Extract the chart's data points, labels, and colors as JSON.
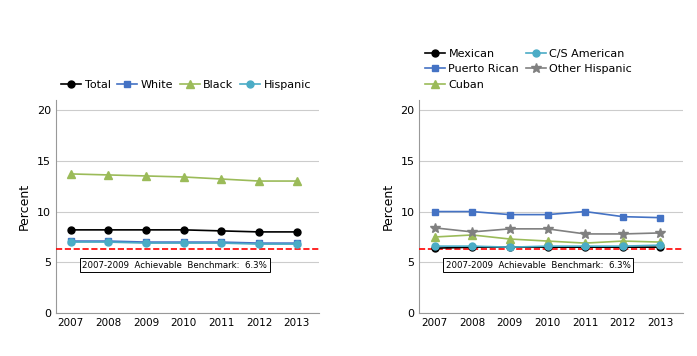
{
  "years": [
    2007,
    2008,
    2009,
    2010,
    2011,
    2012,
    2013
  ],
  "left_chart": {
    "Total": [
      8.2,
      8.2,
      8.2,
      8.2,
      8.1,
      8.0,
      8.0
    ],
    "White": [
      7.1,
      7.1,
      7.0,
      7.0,
      7.0,
      6.9,
      6.9
    ],
    "Black": [
      13.7,
      13.6,
      13.5,
      13.4,
      13.2,
      13.0,
      13.0
    ],
    "Hispanic": [
      7.0,
      7.0,
      6.9,
      6.9,
      6.9,
      6.8,
      6.8
    ]
  },
  "left_series": [
    {
      "label": "Total",
      "color": "#000000",
      "marker": "o",
      "mfc": "#000000"
    },
    {
      "label": "White",
      "color": "#4472C4",
      "marker": "s",
      "mfc": "#4472C4"
    },
    {
      "label": "Black",
      "color": "#9BBB59",
      "marker": "^",
      "mfc": "#9BBB59"
    },
    {
      "label": "Hispanic",
      "color": "#4BACC6",
      "marker": "o",
      "mfc": "#4BACC6"
    }
  ],
  "right_chart": {
    "Mexican": [
      6.4,
      6.5,
      6.5,
      6.5,
      6.5,
      6.5,
      6.5
    ],
    "Puerto Rican": [
      10.0,
      10.0,
      9.7,
      9.7,
      10.0,
      9.5,
      9.4
    ],
    "Cuban": [
      7.5,
      7.7,
      7.3,
      7.1,
      6.9,
      7.1,
      7.0
    ],
    "C/S American": [
      6.6,
      6.6,
      6.5,
      6.6,
      6.6,
      6.6,
      6.7
    ],
    "Other Hispanic": [
      8.4,
      8.0,
      8.3,
      8.3,
      7.8,
      7.8,
      7.9
    ]
  },
  "right_series": [
    {
      "label": "Mexican",
      "color": "#000000",
      "marker": "o",
      "mfc": "#000000"
    },
    {
      "label": "Puerto Rican",
      "color": "#4472C4",
      "marker": "s",
      "mfc": "#4472C4"
    },
    {
      "label": "Cuban",
      "color": "#9BBB59",
      "marker": "^",
      "mfc": "#9BBB59"
    },
    {
      "label": "C/S American",
      "color": "#4BACC6",
      "marker": "o",
      "mfc": "#4BACC6"
    },
    {
      "label": "Other Hispanic",
      "color": "#808080",
      "marker": "*",
      "mfc": "#808080"
    }
  ],
  "benchmark_value": 6.3,
  "benchmark_label": "2007-2009  Achievable  Benchmark:  6.3%",
  "ylabel": "Percent",
  "ylim": [
    0,
    21
  ],
  "yticks": [
    0,
    5,
    10,
    15,
    20
  ],
  "background_color": "#ffffff",
  "gridcolor": "#cccccc"
}
